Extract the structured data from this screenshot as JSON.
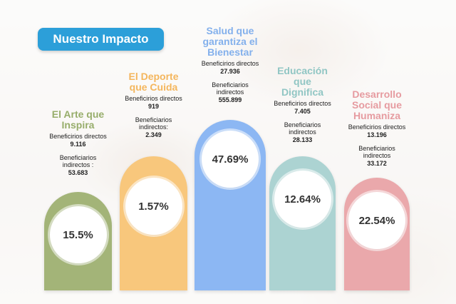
{
  "header": {
    "title": "Nuestro Impacto"
  },
  "chart_data": {
    "type": "bar",
    "title": "Nuestro Impacto",
    "categories": [
      "El Arte que Inspira",
      "El Deporte que Cuida",
      "Salud que garantiza el Bienestar",
      "Educación que Dignifica",
      "Desarrollo Social que Humaniza"
    ],
    "values": [
      15.5,
      1.57,
      47.69,
      12.64,
      22.54
    ],
    "value_labels": [
      "15.5%",
      "1.57%",
      "47.69%",
      "12.64%",
      "22.54%"
    ],
    "colors": [
      "#a3b478",
      "#f8c77c",
      "#8cb7f3",
      "#acd3d2",
      "#eaa8ab"
    ],
    "ylim": [
      0,
      50
    ],
    "items": [
      {
        "name": "El Arte que Inspira",
        "title_lines": [
          "El Arte que",
          "Inspira"
        ],
        "title_color": "#97ad6b",
        "direct_label": "Beneficirios directos",
        "direct_value": "9.116",
        "indirect_label_lines": [
          "Beneficiarios",
          "indirectos :"
        ],
        "indirect_value": "53.683",
        "value": 15.5,
        "value_label": "15.5%",
        "color": "#a3b478"
      },
      {
        "name": "El Deporte que Cuida",
        "title_lines": [
          "El Deporte",
          "que Cuida"
        ],
        "title_color": "#f4b65d",
        "direct_label": "Beneficirios directos",
        "direct_value": "919",
        "indirect_label_lines": [
          "Beneficiarios",
          "indirectos:"
        ],
        "indirect_value": "2.349",
        "value": 1.57,
        "value_label": "1.57%",
        "color": "#f8c77c"
      },
      {
        "name": "Salud que garantiza el Bienestar",
        "title_lines": [
          "Salud que",
          "garantiza el",
          "Bienestar"
        ],
        "title_color": "#83b0ec",
        "direct_label": "Beneficirios directos",
        "direct_value": "27.936",
        "indirect_label_lines": [
          "Beneficiarios",
          "indirectos"
        ],
        "indirect_value": "555.899",
        "value": 47.69,
        "value_label": "47.69%",
        "color": "#8cb7f3"
      },
      {
        "name": "Educación que Dignifica",
        "title_lines": [
          "Educación",
          "que",
          "Dignifica"
        ],
        "title_color": "#91c6c4",
        "direct_label": "Beneficirios directos",
        "direct_value": "7.405",
        "indirect_label_lines": [
          "Beneficiarios",
          "indirectos"
        ],
        "indirect_value": "28.133",
        "value": 12.64,
        "value_label": "12.64%",
        "color": "#acd3d2"
      },
      {
        "name": "Desarrollo Social que Humaniza",
        "title_lines": [
          "Desarrollo",
          "Social que",
          "Humaniza"
        ],
        "title_color": "#e69ba0",
        "direct_label": "Beneficirios directos",
        "direct_value": "13.196",
        "indirect_label_lines": [
          "Beneficiarios",
          "indirectos"
        ],
        "indirect_value": "33.172",
        "value": 22.54,
        "value_label": "22.54%",
        "color": "#eaa8ab"
      }
    ]
  }
}
